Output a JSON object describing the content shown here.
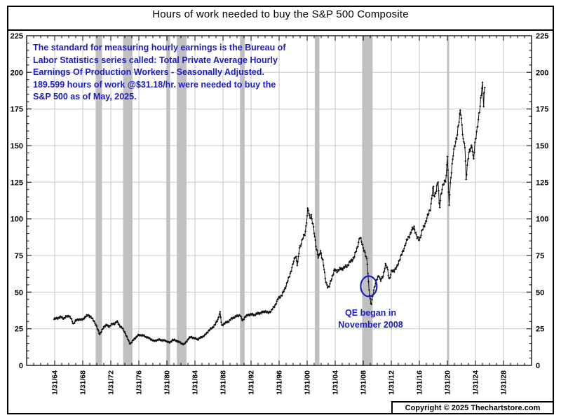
{
  "page": {
    "title": "Hours of work needed to buy the S&P 500 Composite",
    "copyright": "Copyright © 2025 Thechartstore.com"
  },
  "note": {
    "color": "#1c1cc4",
    "lines": [
      "The standard for measuring hourly earnings is the Bureau of",
      "Labor Statistics series called:  Total Private Average Hourly",
      "Earnings Of Production Workers - Seasonally Adjusted.",
      "189.599 hours of work @$31.18/hr. were needed to buy the",
      "S&P 500 as of May, 2025."
    ]
  },
  "qe_annotation": {
    "lines": [
      "QE began in",
      "November 2008"
    ],
    "color": "#1c1cc4",
    "circle_date": 2008.87,
    "circle_value": 54,
    "circle_color": "#1c1cc4"
  },
  "chart_data": {
    "type": "line",
    "title": "Hours of work needed to buy the S&P 500 Composite",
    "series_name": "Hours of work needed to buy the S&P 500 Composite",
    "xlabel": "",
    "ylabel": "Hours of work",
    "ylim": [
      0,
      225
    ],
    "y_major_step": 25,
    "y_minor_step": 5,
    "x_minor_step_years": 1,
    "grid": true,
    "legend": "none",
    "line_color": "#111111",
    "grid_color": "#c9c9c9",
    "band_color": "#c0c0c0",
    "y_tick_labels": [
      "0",
      "25",
      "50",
      "75",
      "100",
      "125",
      "150",
      "175",
      "200",
      "225"
    ],
    "x_tick_labels": [
      "1/31/64",
      "1/31/68",
      "1/31/72",
      "1/31/76",
      "1/31/80",
      "1/31/84",
      "1/31/88",
      "1/31/92",
      "1/31/96",
      "1/31/00",
      "1/31/04",
      "1/31/08",
      "1/31/12",
      "1/31/16",
      "1/31/20",
      "1/31/24",
      "1/31/28"
    ],
    "x_tick_years": [
      1964.083,
      1968.083,
      1972.083,
      1976.083,
      1980.083,
      1984.083,
      1988.083,
      1992.083,
      1996.083,
      2000.083,
      2004.083,
      2008.083,
      2012.083,
      2016.083,
      2020.083,
      2024.083,
      2028.083
    ],
    "recession_bands_years": [
      [
        1969.92,
        1970.83
      ],
      [
        1973.83,
        1975.17
      ],
      [
        1980.0,
        1980.54
      ],
      [
        1981.5,
        1982.88
      ],
      [
        1990.5,
        1991.17
      ],
      [
        2001.17,
        2001.83
      ],
      [
        2007.92,
        2009.42
      ],
      [
        2020.08,
        2020.33
      ]
    ],
    "x_range_years": [
      1964.0,
      2025.42
    ],
    "last_point": {
      "date": "May 2025",
      "hours": 189.599,
      "hourly_wage_usd": 31.18
    },
    "control_points": [
      [
        1964.0,
        31.5
      ],
      [
        1964.3,
        32
      ],
      [
        1964.6,
        32.5
      ],
      [
        1965.0,
        33
      ],
      [
        1965.4,
        32
      ],
      [
        1965.8,
        33.5
      ],
      [
        1966.1,
        34
      ],
      [
        1966.4,
        32
      ],
      [
        1966.75,
        28.5
      ],
      [
        1967.1,
        30.5
      ],
      [
        1967.5,
        31.5
      ],
      [
        1967.9,
        31
      ],
      [
        1968.3,
        32.5
      ],
      [
        1968.9,
        34.5
      ],
      [
        1969.3,
        32.5
      ],
      [
        1969.7,
        30.5
      ],
      [
        1970.0,
        27
      ],
      [
        1970.5,
        21.5
      ],
      [
        1970.75,
        23
      ],
      [
        1971.1,
        26.5
      ],
      [
        1971.4,
        27.5
      ],
      [
        1971.8,
        26.5
      ],
      [
        1972.2,
        28
      ],
      [
        1972.6,
        28.5
      ],
      [
        1972.95,
        30
      ],
      [
        1973.3,
        27.5
      ],
      [
        1973.7,
        25.5
      ],
      [
        1974.1,
        22.5
      ],
      [
        1974.5,
        18
      ],
      [
        1974.8,
        14.8
      ],
      [
        1975.1,
        16
      ],
      [
        1975.5,
        18.5
      ],
      [
        1976.0,
        20.5
      ],
      [
        1976.4,
        20.8
      ],
      [
        1976.9,
        20
      ],
      [
        1977.3,
        19
      ],
      [
        1977.8,
        18
      ],
      [
        1978.2,
        16.5
      ],
      [
        1978.6,
        17.2
      ],
      [
        1979.0,
        17.5
      ],
      [
        1979.4,
        17.2
      ],
      [
        1979.9,
        16.8
      ],
      [
        1980.2,
        16.2
      ],
      [
        1980.45,
        15.3
      ],
      [
        1980.9,
        17.5
      ],
      [
        1981.3,
        17
      ],
      [
        1981.7,
        16.3
      ],
      [
        1982.1,
        15.2
      ],
      [
        1982.55,
        14.3
      ],
      [
        1982.9,
        16.5
      ],
      [
        1983.2,
        18.5
      ],
      [
        1983.6,
        19.5
      ],
      [
        1984.0,
        18.5
      ],
      [
        1984.5,
        17.8
      ],
      [
        1985.0,
        19.3
      ],
      [
        1985.5,
        20.5
      ],
      [
        1986.0,
        23.5
      ],
      [
        1986.5,
        25.5
      ],
      [
        1987.0,
        28
      ],
      [
        1987.4,
        32
      ],
      [
        1987.65,
        36.5
      ],
      [
        1987.9,
        27
      ],
      [
        1988.2,
        28.5
      ],
      [
        1988.7,
        29.5
      ],
      [
        1989.1,
        31
      ],
      [
        1989.5,
        32.5
      ],
      [
        1990.0,
        33.5
      ],
      [
        1990.5,
        34.5
      ],
      [
        1990.85,
        30.5
      ],
      [
        1991.2,
        33
      ],
      [
        1991.7,
        34.5
      ],
      [
        1992.1,
        34.8
      ],
      [
        1992.6,
        34.5
      ],
      [
        1993.1,
        35.5
      ],
      [
        1993.6,
        36
      ],
      [
        1994.1,
        37
      ],
      [
        1994.5,
        35.8
      ],
      [
        1995.0,
        37.5
      ],
      [
        1995.5,
        41
      ],
      [
        1996.0,
        46
      ],
      [
        1996.5,
        48
      ],
      [
        1997.0,
        53.5
      ],
      [
        1997.5,
        60
      ],
      [
        1998.0,
        68
      ],
      [
        1998.45,
        75.5
      ],
      [
        1998.7,
        68
      ],
      [
        1999.0,
        80
      ],
      [
        1999.4,
        86
      ],
      [
        1999.8,
        90
      ],
      [
        2000.2,
        107.5
      ],
      [
        2000.45,
        100
      ],
      [
        2000.65,
        103
      ],
      [
        2000.95,
        95
      ],
      [
        2001.3,
        83
      ],
      [
        2001.7,
        73
      ],
      [
        2002.0,
        78
      ],
      [
        2002.35,
        71
      ],
      [
        2002.7,
        58
      ],
      [
        2003.0,
        54
      ],
      [
        2003.2,
        53
      ],
      [
        2003.6,
        60
      ],
      [
        2004.0,
        65
      ],
      [
        2004.4,
        64.5
      ],
      [
        2004.9,
        66
      ],
      [
        2005.3,
        66.5
      ],
      [
        2005.8,
        68
      ],
      [
        2006.3,
        71
      ],
      [
        2006.8,
        74
      ],
      [
        2007.2,
        80
      ],
      [
        2007.6,
        87.5
      ],
      [
        2007.95,
        83
      ],
      [
        2008.3,
        77
      ],
      [
        2008.65,
        71
      ],
      [
        2008.87,
        54
      ],
      [
        2009.05,
        46
      ],
      [
        2009.2,
        40.5
      ],
      [
        2009.55,
        51
      ],
      [
        2009.9,
        57
      ],
      [
        2010.3,
        62
      ],
      [
        2010.55,
        57.5
      ],
      [
        2010.9,
        61
      ],
      [
        2011.25,
        68.5
      ],
      [
        2011.55,
        66
      ],
      [
        2011.8,
        58.5
      ],
      [
        2012.1,
        64
      ],
      [
        2012.5,
        65
      ],
      [
        2012.9,
        67
      ],
      [
        2013.3,
        73
      ],
      [
        2013.7,
        77
      ],
      [
        2014.1,
        83
      ],
      [
        2014.6,
        88
      ],
      [
        2015.0,
        92
      ],
      [
        2015.35,
        94.5
      ],
      [
        2015.75,
        87
      ],
      [
        2016.1,
        86
      ],
      [
        2016.5,
        92
      ],
      [
        2016.9,
        97
      ],
      [
        2017.3,
        102
      ],
      [
        2017.7,
        108
      ],
      [
        2017.95,
        118
      ],
      [
        2018.05,
        122
      ],
      [
        2018.2,
        115
      ],
      [
        2018.5,
        120
      ],
      [
        2018.75,
        125.5
      ],
      [
        2018.95,
        107
      ],
      [
        2019.2,
        118
      ],
      [
        2019.5,
        123
      ],
      [
        2019.9,
        128
      ],
      [
        2020.1,
        145
      ],
      [
        2020.3,
        107
      ],
      [
        2020.55,
        128
      ],
      [
        2020.9,
        143
      ],
      [
        2021.2,
        152
      ],
      [
        2021.5,
        158
      ],
      [
        2021.8,
        168
      ],
      [
        2021.95,
        176
      ],
      [
        2022.2,
        162
      ],
      [
        2022.4,
        150
      ],
      [
        2022.55,
        153
      ],
      [
        2022.75,
        128
      ],
      [
        2023.0,
        140
      ],
      [
        2023.3,
        147
      ],
      [
        2023.6,
        151
      ],
      [
        2023.8,
        139
      ],
      [
        2024.05,
        153
      ],
      [
        2024.35,
        163
      ],
      [
        2024.65,
        172
      ],
      [
        2024.9,
        184
      ],
      [
        2025.05,
        195.5
      ],
      [
        2025.25,
        178
      ],
      [
        2025.4,
        189.6
      ]
    ]
  }
}
